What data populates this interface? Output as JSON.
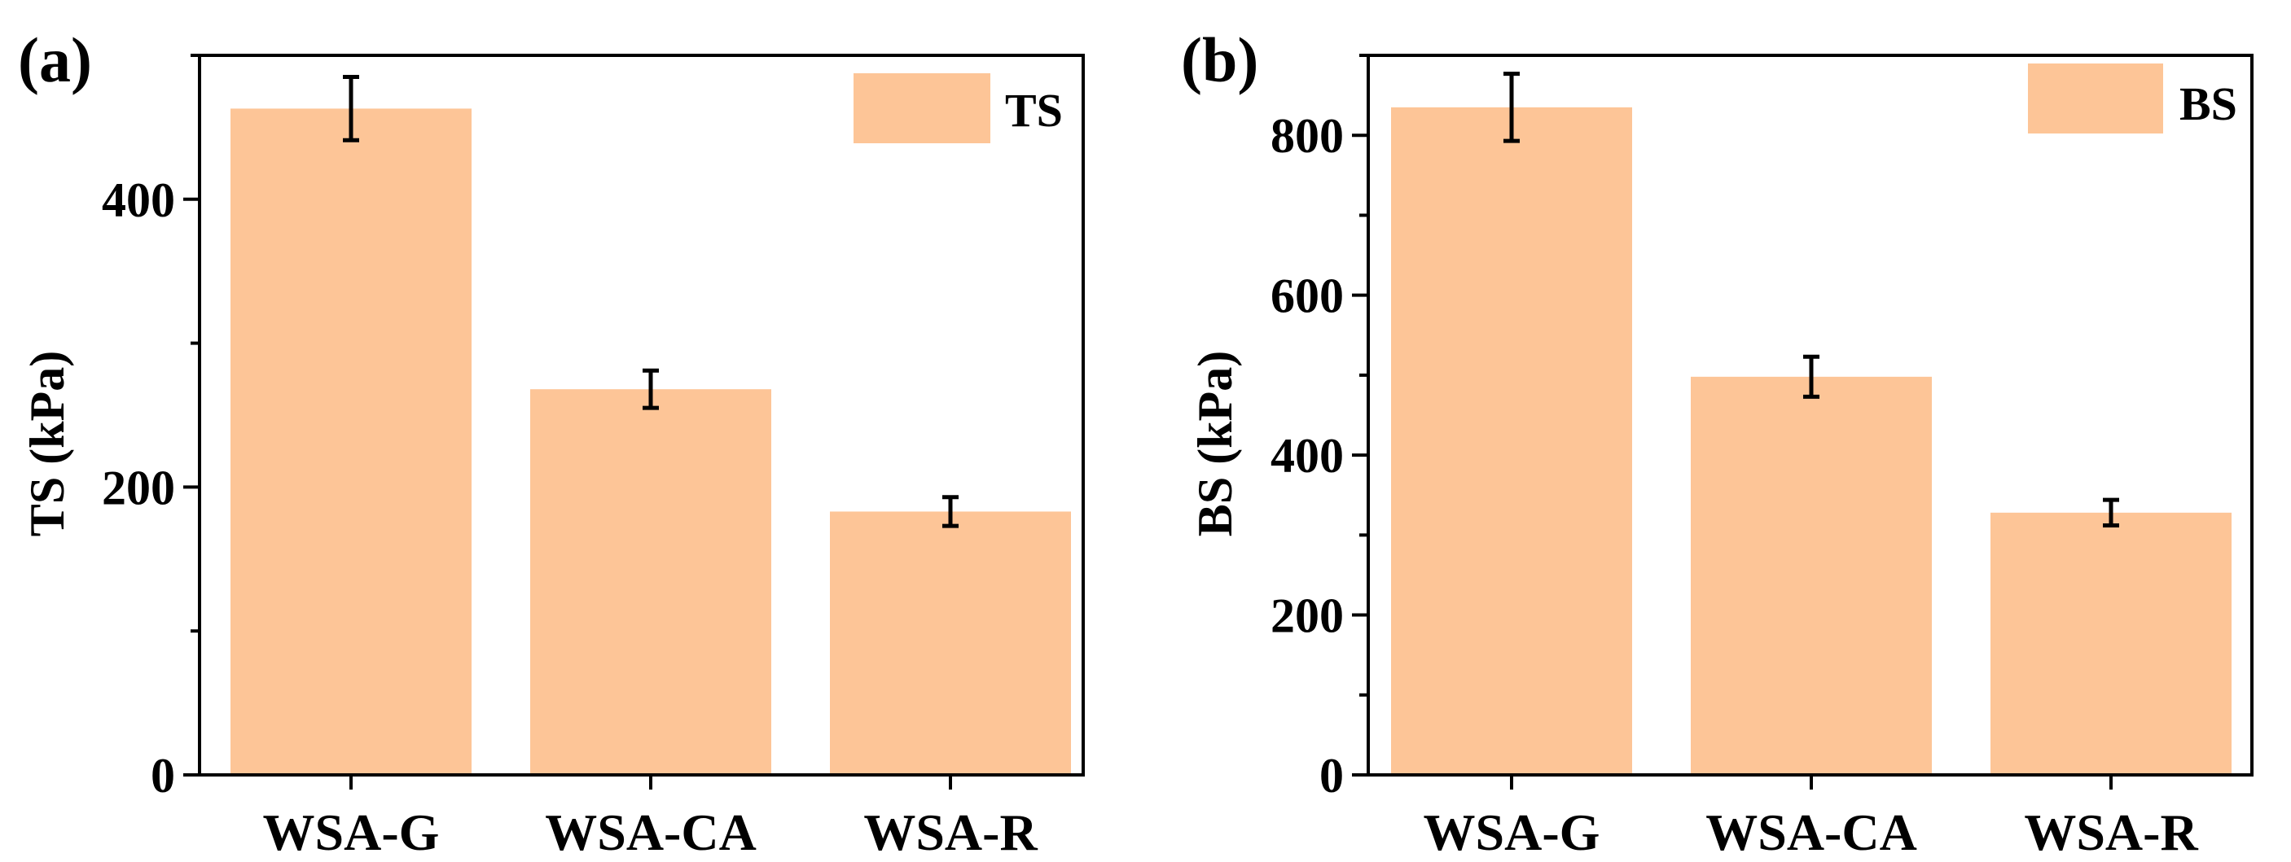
{
  "figure": {
    "colors": {
      "bar": "#FDC597",
      "ink": "#000000"
    }
  },
  "chart_data": [
    {
      "type": "bar",
      "panel_label": "(a)",
      "title": "",
      "xlabel": "",
      "ylabel": "TS (kPa)",
      "categories": [
        "WSA-G",
        "WSA-CA",
        "WSA-R"
      ],
      "series": [
        {
          "name": "TS",
          "values": [
            463,
            268,
            183
          ],
          "errors": [
            22,
            13,
            10
          ]
        }
      ],
      "ylim": [
        0,
        500
      ],
      "yticks": [
        0,
        200,
        400
      ],
      "ytick_labels": [
        "0",
        "200",
        "400"
      ],
      "minor_ticks": [
        100,
        300,
        500
      ],
      "legend": {
        "position": "top-right",
        "label": "TS"
      },
      "grid": false
    },
    {
      "type": "bar",
      "panel_label": "(b)",
      "title": "",
      "xlabel": "",
      "ylabel": "BS (kPa)",
      "categories": [
        "WSA-G",
        "WSA-CA",
        "WSA-R"
      ],
      "series": [
        {
          "name": "BS",
          "values": [
            835,
            498,
            328
          ],
          "errors": [
            42,
            25,
            16
          ]
        }
      ],
      "ylim": [
        0,
        900
      ],
      "yticks": [
        0,
        200,
        400,
        600,
        800
      ],
      "ytick_labels": [
        "0",
        "200",
        "400",
        "600",
        "800"
      ],
      "minor_ticks": [
        100,
        300,
        500,
        700,
        900
      ],
      "legend": {
        "position": "top-right",
        "label": "BS"
      },
      "grid": false
    }
  ]
}
